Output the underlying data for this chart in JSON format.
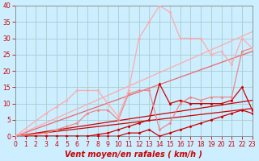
{
  "background_color": "#cceeff",
  "grid_color": "#aacccc",
  "xlabel": "Vent moyen/en rafales ( km/h )",
  "xlim": [
    0,
    23
  ],
  "ylim": [
    0,
    40
  ],
  "yticks": [
    0,
    5,
    10,
    15,
    20,
    25,
    30,
    35,
    40
  ],
  "xticks": [
    0,
    1,
    2,
    3,
    4,
    5,
    6,
    7,
    8,
    9,
    10,
    11,
    12,
    13,
    14,
    15,
    16,
    17,
    18,
    19,
    20,
    21,
    22,
    23
  ],
  "tick_font_size": 5.5,
  "label_font_size": 7,
  "lines": [
    {
      "x": [
        0,
        23
      ],
      "y": [
        0,
        8.5
      ],
      "color": "#cc0000",
      "lw": 0.9,
      "marker": null,
      "zorder": 2
    },
    {
      "x": [
        0,
        23
      ],
      "y": [
        0,
        11.0
      ],
      "color": "#cc0000",
      "lw": 0.9,
      "marker": null,
      "zorder": 2
    },
    {
      "x": [
        0,
        23
      ],
      "y": [
        0,
        26.0
      ],
      "color": "#ee6666",
      "lw": 0.9,
      "marker": null,
      "zorder": 2
    },
    {
      "x": [
        0,
        23
      ],
      "y": [
        0,
        32.0
      ],
      "color": "#ffaaaa",
      "lw": 0.9,
      "marker": null,
      "zorder": 2
    },
    {
      "x": [
        0,
        1,
        2,
        3,
        4,
        5,
        6,
        7,
        8,
        9,
        10,
        11,
        12,
        13,
        14,
        15,
        16,
        17,
        18,
        19,
        20,
        21,
        22,
        23
      ],
      "y": [
        0,
        0,
        0,
        0,
        0,
        0,
        0,
        0,
        0,
        0,
        0,
        1,
        1,
        2,
        0,
        1,
        2,
        3,
        4,
        5,
        6,
        7,
        8,
        7
      ],
      "color": "#cc0000",
      "lw": 0.9,
      "marker": "D",
      "ms": 1.5,
      "zorder": 3
    },
    {
      "x": [
        0,
        1,
        2,
        3,
        4,
        5,
        6,
        7,
        8,
        9,
        10,
        11,
        12,
        13,
        14,
        15,
        16,
        17,
        18,
        19,
        20,
        21,
        22,
        23
      ],
      "y": [
        0,
        0,
        0,
        0,
        0,
        0,
        0,
        0,
        0.5,
        1,
        2,
        3,
        4,
        5,
        16,
        10,
        11,
        10,
        10,
        10,
        10,
        11,
        15,
        8
      ],
      "color": "#cc0000",
      "lw": 0.9,
      "marker": "D",
      "ms": 1.5,
      "zorder": 3
    },
    {
      "x": [
        0,
        3,
        4,
        5,
        6,
        7,
        8,
        9,
        10,
        11,
        12,
        13,
        14,
        15,
        16,
        17,
        18,
        19,
        20,
        21,
        22,
        23
      ],
      "y": [
        0,
        1,
        2,
        3,
        4,
        7,
        8,
        8,
        5,
        13,
        14,
        14,
        2,
        4,
        10,
        12,
        11,
        12,
        12,
        12,
        26,
        27
      ],
      "color": "#ee8888",
      "lw": 0.9,
      "marker": "D",
      "ms": 1.5,
      "zorder": 3
    },
    {
      "x": [
        0,
        3,
        4,
        5,
        6,
        7,
        8,
        9,
        10,
        11,
        12,
        13,
        14,
        15,
        16,
        17,
        18,
        19,
        20,
        21,
        22,
        23
      ],
      "y": [
        0,
        7,
        9,
        11,
        14,
        14,
        14,
        10,
        6,
        14,
        30,
        35,
        40,
        38,
        30,
        30,
        30,
        25,
        26,
        22,
        30,
        27
      ],
      "color": "#ffaaaa",
      "lw": 0.9,
      "marker": "D",
      "ms": 1.5,
      "zorder": 3
    }
  ]
}
